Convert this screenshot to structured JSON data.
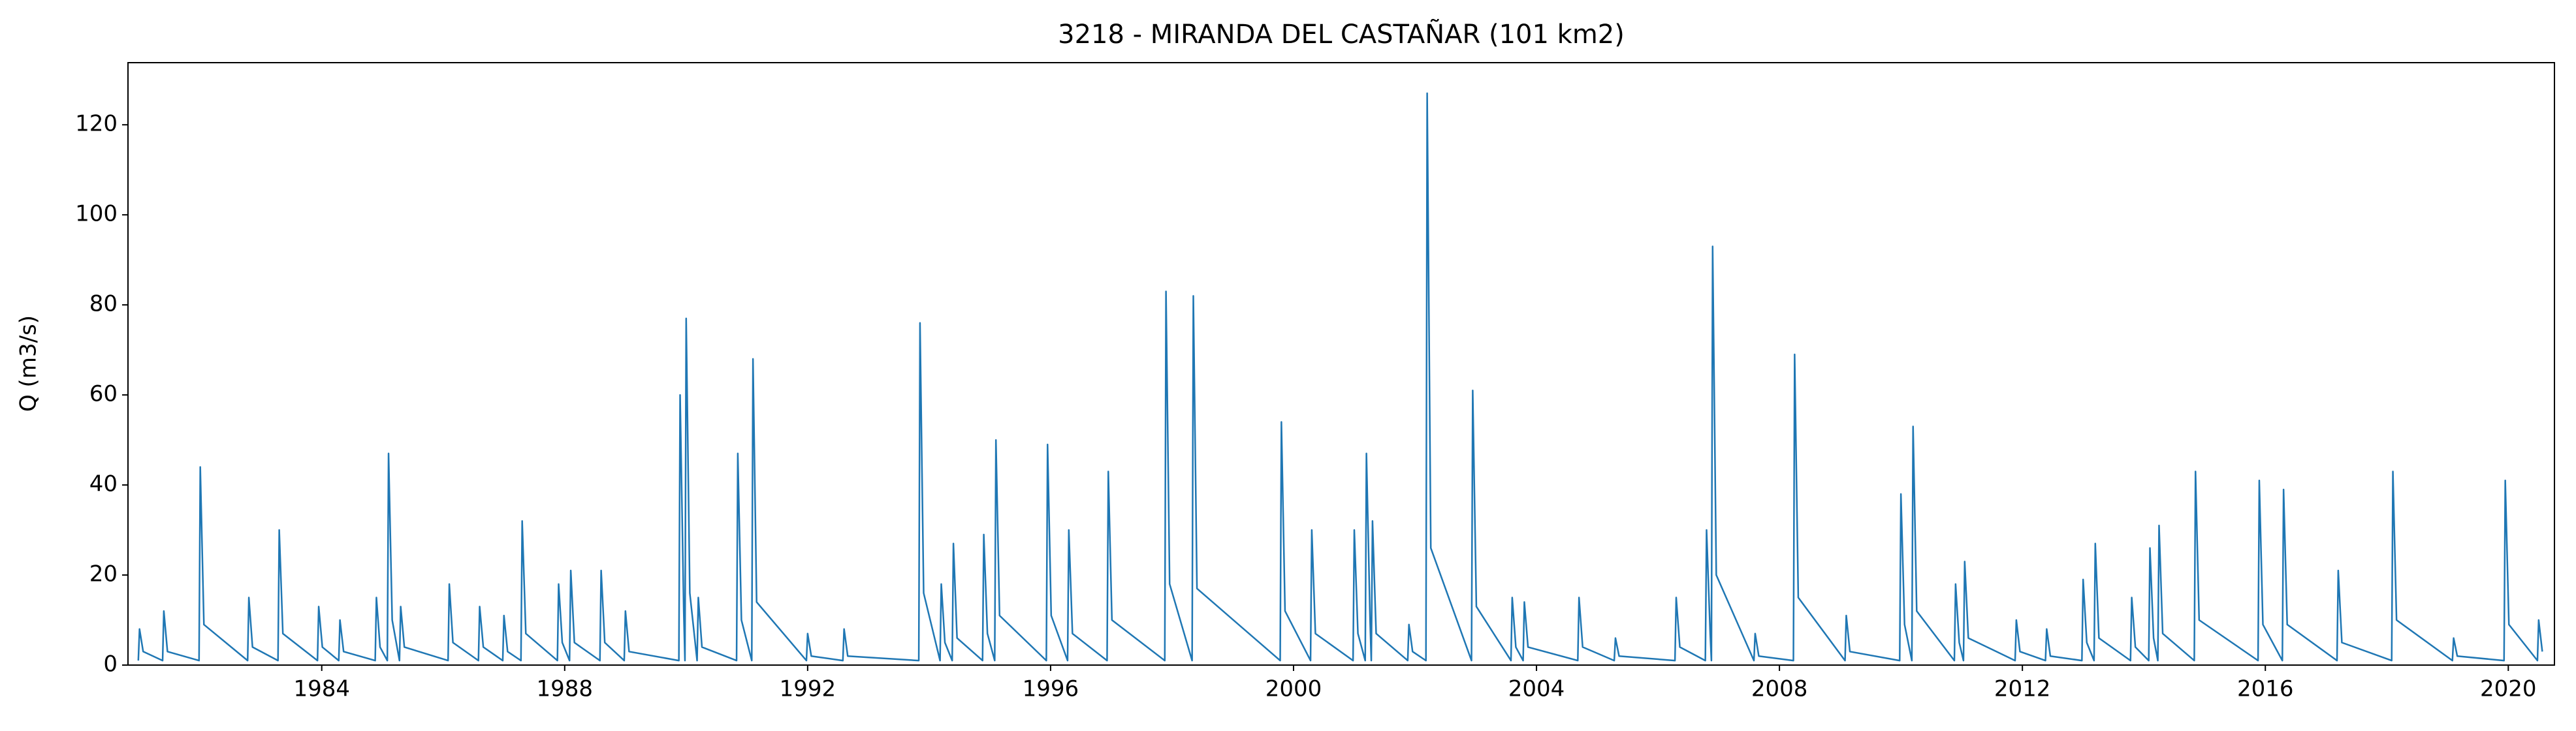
{
  "chart_data": {
    "type": "line",
    "title": "3218 - MIRANDA DEL CASTAÑAR (101 km2)",
    "y_label": "Q (m3/s)",
    "x": [
      1980.98,
      1981,
      1981.06,
      1981.38,
      1981.4,
      1981.46,
      1981.98,
      1982,
      1982.06,
      1982.78,
      1982.8,
      1982.86,
      1983.28,
      1983.3,
      1983.36,
      1983.93,
      1983.95,
      1984.01,
      1984.28,
      1984.3,
      1984.36,
      1984.88,
      1984.9,
      1984.96,
      1985.08,
      1985.1,
      1985.16,
      1985.28,
      1985.3,
      1985.36,
      1986.08,
      1986.1,
      1986.16,
      1986.58,
      1986.6,
      1986.66,
      1986.98,
      1987,
      1987.06,
      1987.28,
      1987.3,
      1987.36,
      1987.88,
      1987.9,
      1987.96,
      1988.08,
      1988.1,
      1988.16,
      1988.58,
      1988.6,
      1988.66,
      1988.98,
      1989,
      1989.06,
      1989.88,
      1989.9,
      1989.96,
      1989.98,
      1990,
      1990.06,
      1990.18,
      1990.2,
      1990.26,
      1990.83,
      1990.85,
      1990.91,
      1991.08,
      1991.1,
      1991.16,
      1991.98,
      1992,
      1992.06,
      1992.58,
      1992.6,
      1992.66,
      1993.83,
      1993.85,
      1993.91,
      1994.18,
      1994.2,
      1994.26,
      1994.38,
      1994.4,
      1994.46,
      1994.88,
      1994.9,
      1994.96,
      1995.08,
      1995.1,
      1995.16,
      1995.93,
      1995.95,
      1996.01,
      1996.28,
      1996.3,
      1996.36,
      1996.93,
      1996.95,
      1997.01,
      1997.88,
      1997.9,
      1997.96,
      1998.33,
      1998.35,
      1998.41,
      1999.78,
      1999.8,
      1999.86,
      2000.28,
      2000.3,
      2000.36,
      2000.98,
      2001,
      2001.06,
      2001.18,
      2001.2,
      2001.26,
      2001.28,
      2001.3,
      2001.36,
      2001.88,
      2001.9,
      2001.96,
      2002.18,
      2002.2,
      2002.26,
      2002.93,
      2002.95,
      2003.01,
      2003.58,
      2003.6,
      2003.66,
      2003.78,
      2003.8,
      2003.86,
      2004.68,
      2004.7,
      2004.76,
      2005.28,
      2005.3,
      2005.36,
      2006.28,
      2006.3,
      2006.36,
      2006.78,
      2006.8,
      2006.86,
      2006.88,
      2006.9,
      2006.96,
      2007.58,
      2007.6,
      2007.66,
      2008.23,
      2008.25,
      2008.31,
      2009.08,
      2009.1,
      2009.16,
      2009.98,
      2010,
      2010.06,
      2010.18,
      2010.2,
      2010.26,
      2010.88,
      2010.9,
      2010.96,
      2011.03,
      2011.05,
      2011.11,
      2011.88,
      2011.9,
      2011.96,
      2012.38,
      2012.4,
      2012.46,
      2012.98,
      2013,
      2013.06,
      2013.18,
      2013.2,
      2013.26,
      2013.78,
      2013.8,
      2013.86,
      2014.08,
      2014.1,
      2014.16,
      2014.23,
      2014.25,
      2014.31,
      2014.83,
      2014.85,
      2014.91,
      2015.88,
      2015.9,
      2015.96,
      2016.28,
      2016.3,
      2016.36,
      2017.18,
      2017.2,
      2017.26,
      2018.08,
      2018.1,
      2018.16,
      2019.08,
      2019.1,
      2019.16,
      2019.93,
      2019.95,
      2020.01,
      2020.48,
      2020.5,
      2020.56
    ],
    "series": [
      {
        "name": "Q",
        "color": "#1f77b4",
        "values": [
          1,
          8,
          3,
          1,
          12,
          3,
          1,
          44,
          9,
          1,
          15,
          4,
          1,
          30,
          7,
          1,
          13,
          4,
          1,
          10,
          3,
          1,
          15,
          4,
          1,
          47,
          10,
          1,
          13,
          4,
          1,
          18,
          5,
          1,
          13,
          4,
          1,
          11,
          3,
          1,
          32,
          7,
          1,
          18,
          5,
          1,
          21,
          5,
          1,
          21,
          5,
          1,
          12,
          3,
          1,
          60,
          12,
          1,
          77,
          16,
          1,
          15,
          4,
          1,
          47,
          10,
          1,
          68,
          14,
          1,
          7,
          2,
          1,
          8,
          2,
          1,
          76,
          16,
          1,
          18,
          5,
          1,
          27,
          6,
          1,
          29,
          7,
          1,
          50,
          11,
          1,
          49,
          11,
          1,
          30,
          7,
          1,
          43,
          10,
          1,
          83,
          18,
          1,
          82,
          17,
          1,
          54,
          12,
          1,
          30,
          7,
          1,
          30,
          7,
          1,
          47,
          10,
          1,
          32,
          7,
          1,
          9,
          3,
          1,
          127,
          26,
          1,
          61,
          13,
          1,
          15,
          4,
          1,
          14,
          4,
          1,
          15,
          4,
          1,
          6,
          2,
          1,
          15,
          4,
          1,
          30,
          7,
          1,
          93,
          20,
          1,
          7,
          2,
          1,
          69,
          15,
          1,
          11,
          3,
          1,
          38,
          9,
          1,
          53,
          12,
          1,
          18,
          5,
          1,
          23,
          6,
          1,
          10,
          3,
          1,
          8,
          2,
          1,
          19,
          5,
          1,
          27,
          6,
          1,
          15,
          4,
          1,
          26,
          6,
          1,
          31,
          7,
          1,
          43,
          10,
          1,
          41,
          9,
          1,
          39,
          9,
          1,
          21,
          5,
          1,
          43,
          10,
          1,
          6,
          2,
          1,
          41,
          9,
          1,
          10,
          3
        ]
      }
    ],
    "xlim": [
      1980.81,
      2020.76
    ],
    "xticks": [
      1984,
      1988,
      1992,
      1996,
      2000,
      2004,
      2008,
      2012,
      2016,
      2020
    ],
    "ylim": [
      0,
      133.8
    ],
    "yticks": [
      0,
      20,
      40,
      60,
      80,
      100,
      120
    ],
    "grid": false
  }
}
